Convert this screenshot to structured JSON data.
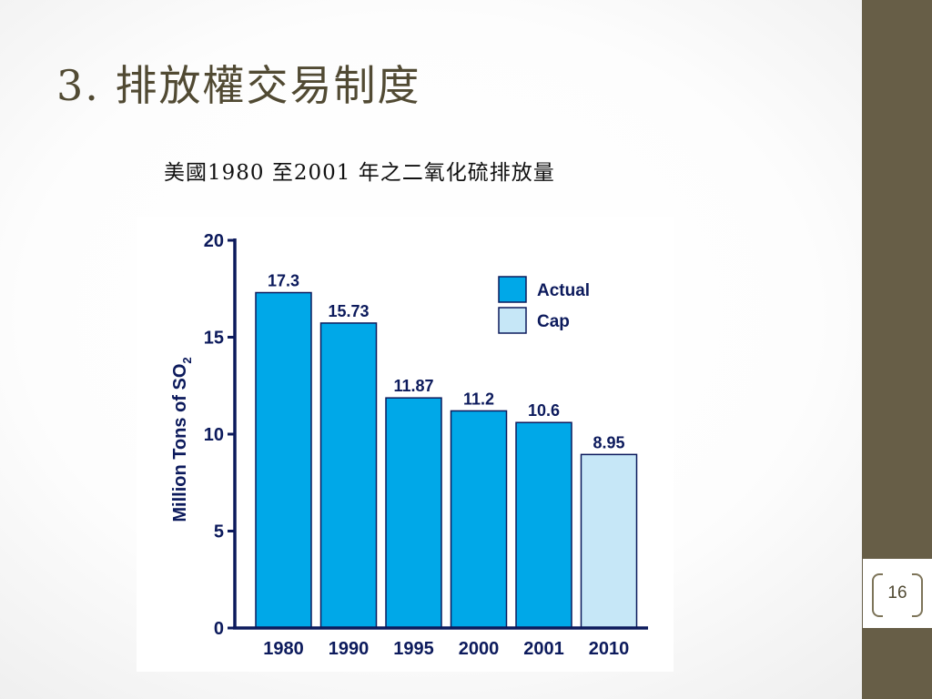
{
  "slide": {
    "title": "3. 排放權交易制度",
    "subtitle": "美國1980 至2001 年之二氧化硫排放量",
    "page_number": "16"
  },
  "colors": {
    "actual": "#00a8e8",
    "cap": "#c6e7f7",
    "axis": "#0c1a5c",
    "title": "#514a33",
    "side_bar": "#675e47"
  },
  "chart_data": {
    "type": "bar",
    "categories": [
      "1980",
      "1990",
      "1995",
      "2000",
      "2001",
      "2010"
    ],
    "values": [
      17.3,
      15.73,
      11.87,
      11.2,
      10.6,
      8.95
    ],
    "value_labels": [
      "17.3",
      "15.73",
      "11.87",
      "11.2",
      "10.6",
      "8.95"
    ],
    "bar_series": [
      "Actual",
      "Actual",
      "Actual",
      "Actual",
      "Actual",
      "Cap"
    ],
    "legend": [
      {
        "name": "Actual",
        "color": "#00a8e8"
      },
      {
        "name": "Cap",
        "color": "#c6e7f7"
      }
    ],
    "legend_position": "top-right",
    "ylabel": "Million Tons of SO",
    "ylabel_subscript": "2",
    "xlabel": "",
    "title": "",
    "ylim": [
      0,
      20
    ],
    "yticks": [
      0,
      5,
      10,
      15,
      20
    ],
    "grid": false
  }
}
